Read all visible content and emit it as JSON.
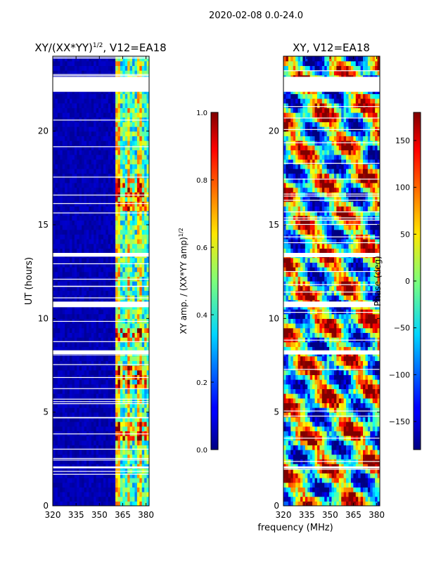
{
  "suptitle": "2020-02-08 0.0-24.0",
  "xlabel_shared": "frequency (MHz)",
  "chart_data": [
    {
      "type": "heatmap",
      "title": "XY/(XX*YY)",
      "title_sup": "1/2",
      "title_suffix": ", V12=EA18",
      "ylabel": "UT (hours)",
      "xlim": [
        320,
        382
      ],
      "ylim": [
        0,
        24
      ],
      "x_ticks": [
        320,
        335,
        350,
        365,
        380
      ],
      "y_ticks": [
        0,
        5,
        10,
        15,
        20
      ],
      "blank_time_ranges_hours": [
        [
          22.1,
          22.9
        ],
        [
          13.3,
          13.5
        ],
        [
          10.6,
          10.9
        ],
        [
          8.1,
          8.3
        ],
        [
          2.0,
          2.1
        ]
      ],
      "active_band_mhz": [
        360,
        382
      ],
      "colorbar": {
        "label": "XY amp. / (XX*YY amp)",
        "label_sup": "1/2",
        "range": [
          0.0,
          1.0
        ],
        "ticks": [
          "0.0",
          "0.2",
          "0.4",
          "0.6",
          "0.8",
          "1.0"
        ],
        "colormap": "jet"
      }
    },
    {
      "type": "heatmap",
      "title": "XY, V12=EA18",
      "xlim": [
        320,
        382
      ],
      "ylim": [
        0,
        24
      ],
      "x_ticks": [
        320,
        335,
        350,
        365,
        380
      ],
      "y_ticks": [
        0,
        5,
        10,
        15,
        20
      ],
      "blank_time_ranges_hours": [
        [
          22.1,
          22.9
        ],
        [
          13.3,
          13.5
        ],
        [
          10.6,
          10.9
        ],
        [
          8.1,
          8.3
        ],
        [
          2.0,
          2.1
        ]
      ],
      "colorbar": {
        "label": "Phase (deg)",
        "range": [
          -180,
          180
        ],
        "ticks": [
          "150",
          "100",
          "50",
          "0",
          "−50",
          "−100",
          "−150"
        ],
        "tick_values": [
          150,
          100,
          50,
          0,
          -50,
          -100,
          -150
        ],
        "colormap": "jet"
      }
    }
  ]
}
